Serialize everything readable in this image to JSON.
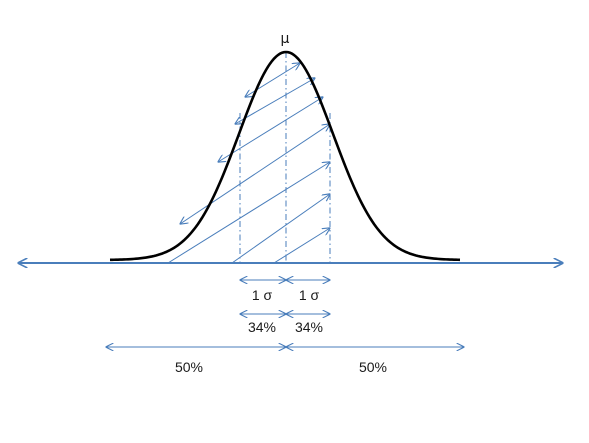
{
  "diagram": {
    "mean_label": "μ",
    "sigma_left_label": "1 σ",
    "sigma_right_label": "1 σ",
    "pct_34_left": "34%",
    "pct_34_right": "34%",
    "pct_50_left": "50%",
    "pct_50_right": "50%"
  },
  "colors": {
    "curve": "#000000",
    "lines": "#4a7ebb"
  }
}
